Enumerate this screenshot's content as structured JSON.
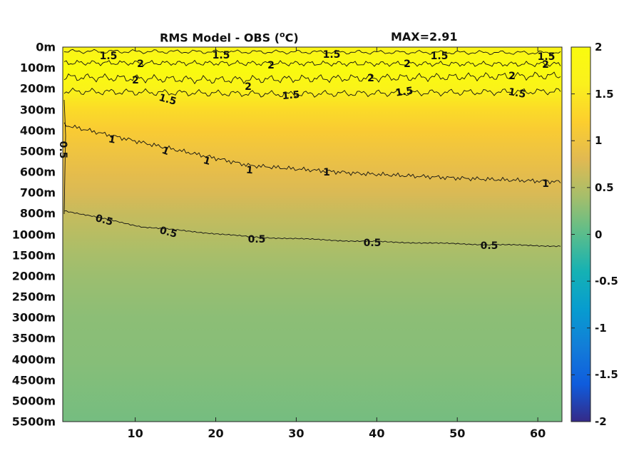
{
  "chart_data": {
    "type": "heatmap",
    "title_left": "RMS Model - OBS (",
    "title_sup": "o",
    "title_right": "C)",
    "max_label": "MAX=2.91",
    "y_tick_labels": [
      "0m",
      "100m",
      "200m",
      "300m",
      "400m",
      "500m",
      "600m",
      "700m",
      "800m",
      "1000m",
      "1500m",
      "2000m",
      "2500m",
      "3000m",
      "3500m",
      "4000m",
      "4500m",
      "5000m",
      "5500m"
    ],
    "x_ticks": [
      10,
      20,
      30,
      40,
      50,
      60
    ],
    "xlim": [
      1,
      63
    ],
    "colorbar": {
      "ticks": [
        "2",
        "1.5",
        "1",
        "0.5",
        "0",
        "-0.5",
        "-1",
        "-1.5",
        "-2"
      ],
      "range": [
        -2,
        2
      ],
      "colormap": "parula"
    },
    "contour_levels": [
      0.5,
      1,
      1.5,
      2
    ],
    "contour_label_text": {
      "c05": "0.5",
      "c1": "1",
      "c15": "1.5",
      "c2": "2"
    },
    "field_profile_by_depth": [
      {
        "depth": "0m",
        "value": 1.7
      },
      {
        "depth": "100m",
        "value": 2.05
      },
      {
        "depth": "200m",
        "value": 1.7
      },
      {
        "depth": "300m",
        "value": 1.35
      },
      {
        "depth": "400m",
        "value": 1.15
      },
      {
        "depth": "500m",
        "value": 1.0
      },
      {
        "depth": "600m",
        "value": 0.88
      },
      {
        "depth": "700m",
        "value": 0.75
      },
      {
        "depth": "800m",
        "value": 0.62
      },
      {
        "depth": "1000m",
        "value": 0.52
      },
      {
        "depth": "1500m",
        "value": 0.42
      },
      {
        "depth": "2000m",
        "value": 0.35
      },
      {
        "depth": "3000m",
        "value": 0.27
      },
      {
        "depth": "4000m",
        "value": 0.24
      },
      {
        "depth": "5500m",
        "value": 0.15
      }
    ]
  }
}
